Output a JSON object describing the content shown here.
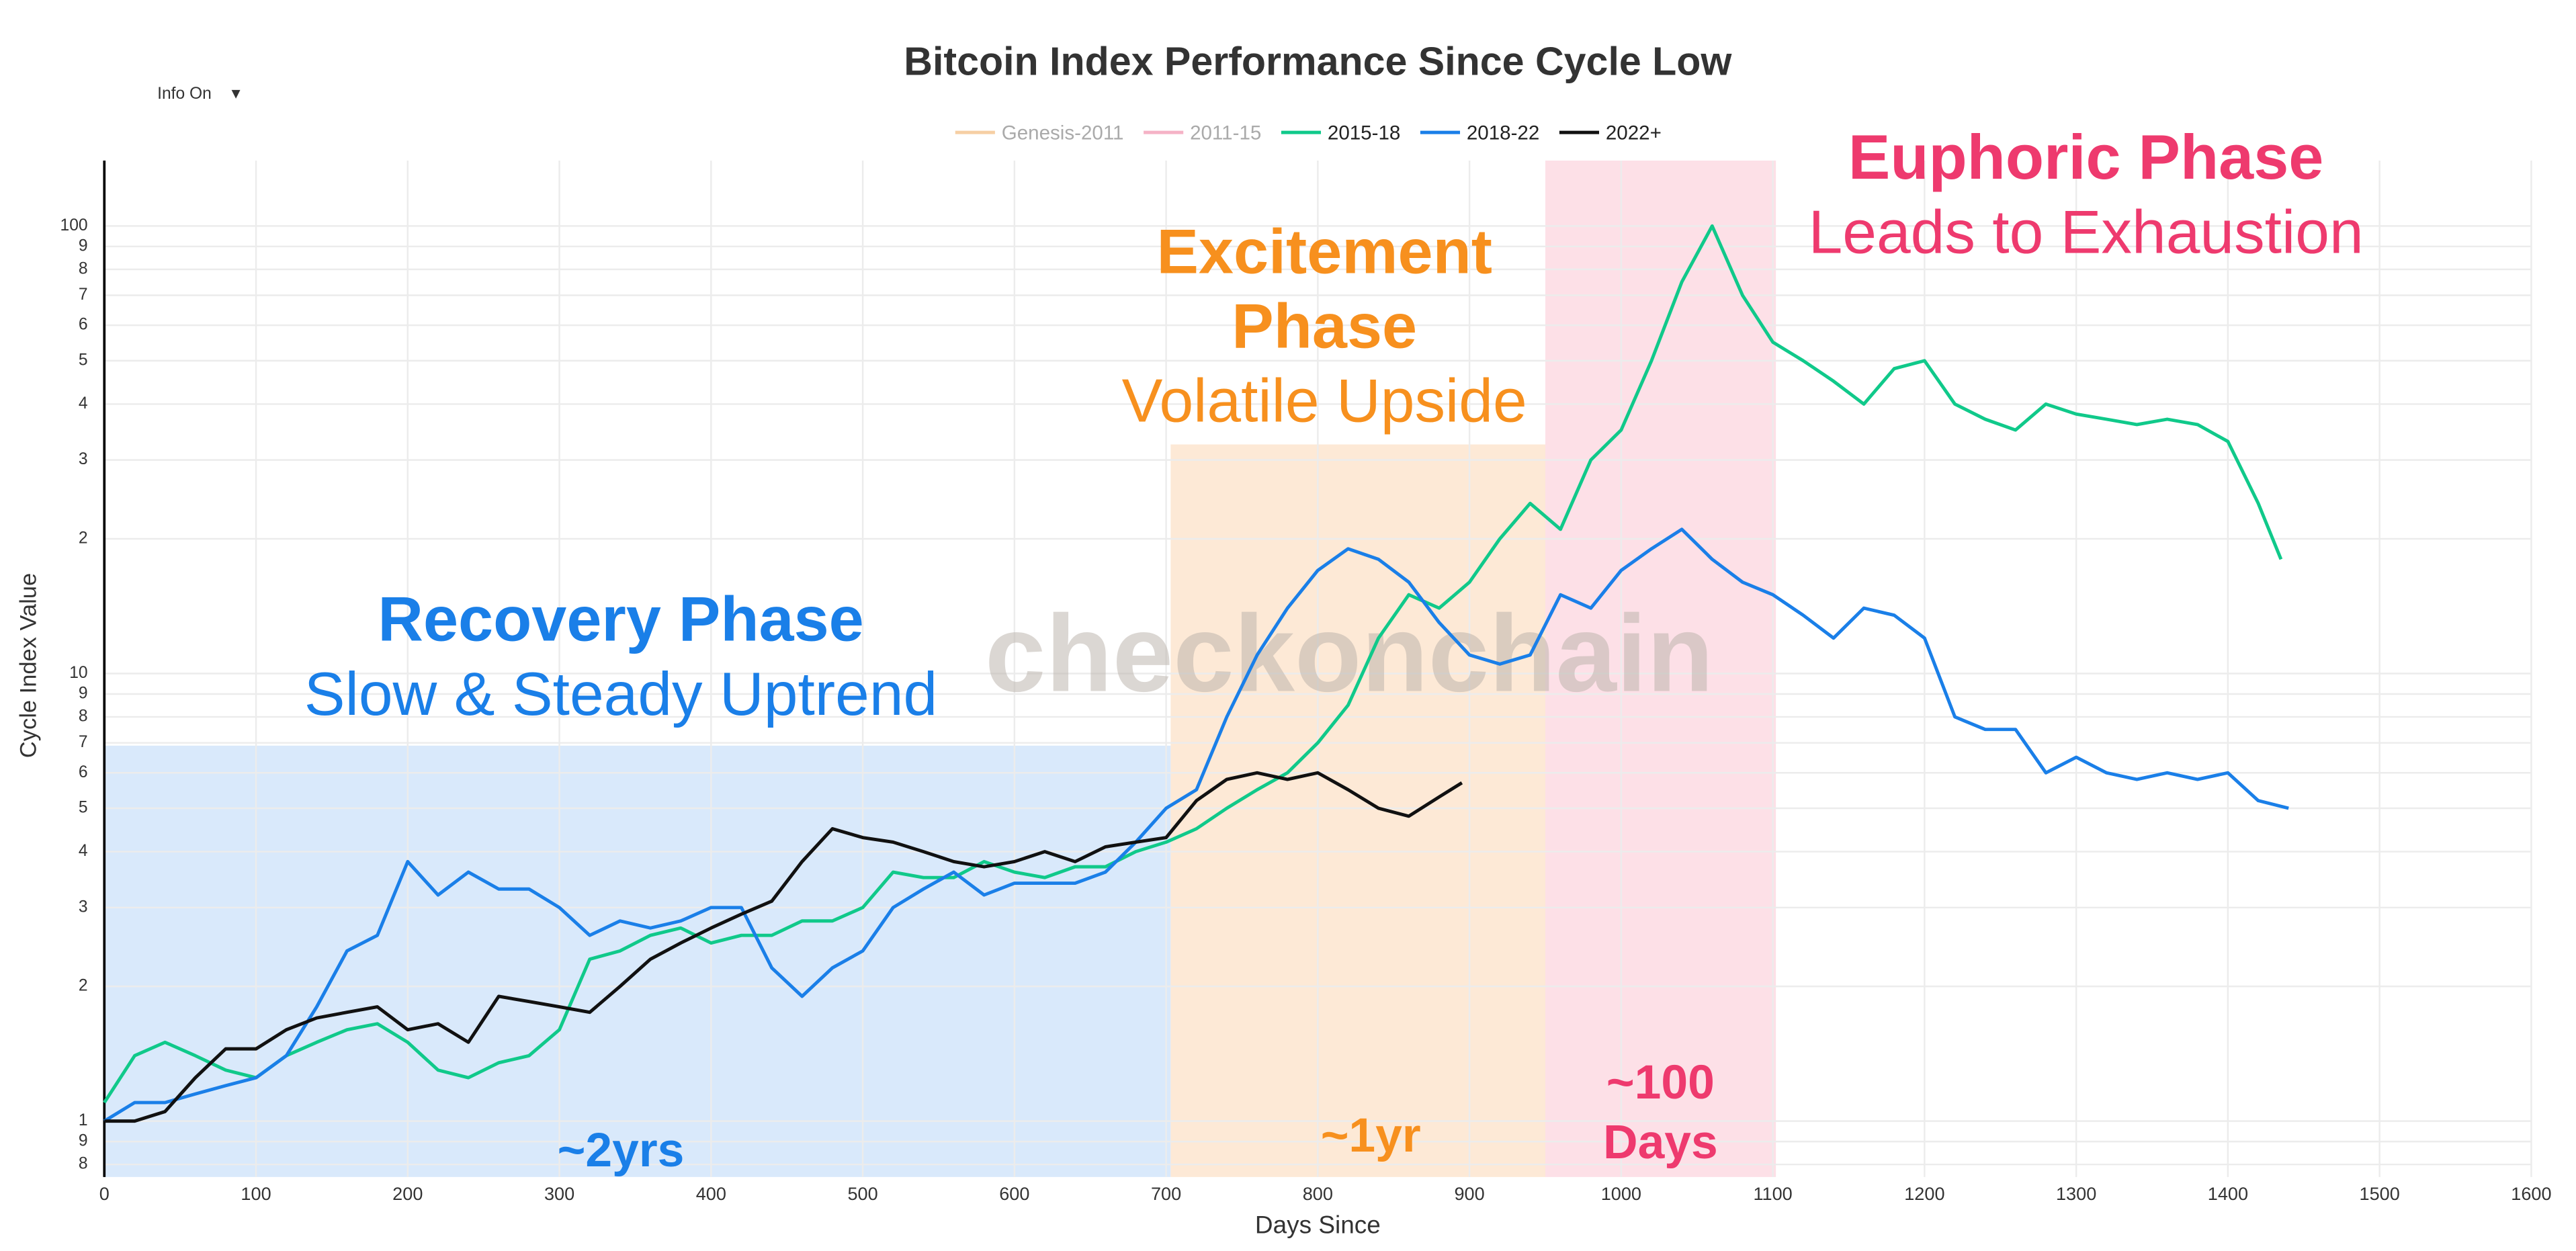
{
  "chart_data": {
    "type": "line",
    "title": "Bitcoin Index Performance Since Cycle Low",
    "menu": {
      "label": "Info On",
      "arrow": "▼"
    },
    "watermark": "checkonchain",
    "xlabel": "Days Since",
    "ylabel": "Cycle Index Value",
    "log_y": true,
    "grid": true,
    "legend": "top",
    "xlim": [
      0,
      1600
    ],
    "xticks": [
      0,
      100,
      200,
      300,
      400,
      500,
      600,
      700,
      800,
      900,
      1000,
      1100,
      1200,
      1300,
      1400,
      1500,
      1600
    ],
    "ylim": [
      0.75,
      140
    ],
    "yticks": [
      {
        "value": 0.8,
        "label": "8"
      },
      {
        "value": 0.9,
        "label": "9"
      },
      1,
      2,
      3,
      4,
      5,
      6,
      7,
      8,
      9,
      10,
      {
        "value": 20,
        "label": "2"
      },
      {
        "value": 30,
        "label": "3"
      },
      {
        "value": 40,
        "label": "4"
      },
      {
        "value": 50,
        "label": "5"
      },
      {
        "value": 60,
        "label": "6"
      },
      {
        "value": 70,
        "label": "7"
      },
      {
        "value": 80,
        "label": "8"
      },
      {
        "value": 90,
        "label": "9"
      },
      100
    ],
    "phases": [
      {
        "x": [
          0,
          703
        ],
        "top": 6.9,
        "color": "#1a7fe8",
        "fill": "#d9e9fb",
        "title": [
          "Recovery Phase"
        ],
        "subtitle": "Slow & Steady Uptrend",
        "duration": [
          "~2yrs"
        ]
      },
      {
        "x": [
          703,
          950
        ],
        "top": 32.5,
        "color": "#f7901e",
        "fill": "#fde9d6",
        "title": [
          "Excitement",
          "Phase"
        ],
        "subtitle": "Volatile Upside",
        "duration": [
          "~1yr"
        ]
      },
      {
        "x": [
          950,
          1102
        ],
        "top": 140,
        "color": "#ee3a6e",
        "fill": "#fde0e7",
        "title": [
          "Euphoric Phase"
        ],
        "subtitle": "Leads to Exhaustion",
        "duration": [
          "~100",
          "Days"
        ]
      }
    ],
    "series": [
      {
        "name": "Genesis-2011",
        "color": "#f6cfa4",
        "visible": false,
        "x": [],
        "values": []
      },
      {
        "name": "2011-15",
        "color": "#f5b3c6",
        "visible": false,
        "x": [],
        "values": []
      },
      {
        "name": "2015-18",
        "color": "#10c98a",
        "visible": true,
        "x": [
          0,
          20,
          40,
          60,
          80,
          100,
          120,
          140,
          160,
          180,
          200,
          220,
          240,
          260,
          280,
          300,
          320,
          340,
          360,
          380,
          400,
          420,
          440,
          460,
          480,
          500,
          520,
          540,
          560,
          580,
          600,
          620,
          640,
          660,
          680,
          700,
          720,
          740,
          760,
          780,
          800,
          820,
          840,
          860,
          880,
          900,
          920,
          940,
          960,
          980,
          1000,
          1020,
          1040,
          1060,
          1080,
          1100,
          1120,
          1140,
          1160,
          1180,
          1200,
          1220,
          1240,
          1260,
          1280,
          1300,
          1320,
          1340,
          1360,
          1380,
          1400,
          1420,
          1435
        ],
        "values": [
          1.1,
          1.4,
          1.5,
          1.4,
          1.3,
          1.25,
          1.4,
          1.5,
          1.6,
          1.65,
          1.5,
          1.3,
          1.25,
          1.35,
          1.4,
          1.6,
          2.3,
          2.4,
          2.6,
          2.7,
          2.5,
          2.6,
          2.6,
          2.8,
          2.8,
          3.0,
          3.6,
          3.5,
          3.5,
          3.8,
          3.6,
          3.5,
          3.7,
          3.7,
          4.0,
          4.2,
          4.5,
          5.0,
          5.5,
          6.0,
          7.0,
          8.5,
          12,
          15,
          14,
          16,
          20,
          24,
          21,
          30,
          35,
          50,
          75,
          100,
          70,
          55,
          50,
          45,
          40,
          48,
          50,
          40,
          37,
          35,
          40,
          38,
          37,
          36,
          37,
          36,
          33,
          24,
          18
        ]
      },
      {
        "name": "2018-22",
        "color": "#1a7fe8",
        "visible": true,
        "x": [
          0,
          20,
          40,
          60,
          80,
          100,
          120,
          140,
          160,
          180,
          200,
          220,
          240,
          260,
          280,
          300,
          320,
          340,
          360,
          380,
          400,
          420,
          440,
          460,
          480,
          500,
          520,
          540,
          560,
          580,
          600,
          620,
          640,
          660,
          680,
          700,
          720,
          740,
          760,
          780,
          800,
          820,
          840,
          860,
          880,
          900,
          920,
          940,
          960,
          980,
          1000,
          1020,
          1040,
          1060,
          1080,
          1100,
          1120,
          1140,
          1160,
          1180,
          1200,
          1220,
          1240,
          1260,
          1280,
          1300,
          1320,
          1340,
          1360,
          1380,
          1400,
          1420,
          1440
        ],
        "values": [
          1.0,
          1.1,
          1.1,
          1.15,
          1.2,
          1.25,
          1.4,
          1.8,
          2.4,
          2.6,
          3.8,
          3.2,
          3.6,
          3.3,
          3.3,
          3.0,
          2.6,
          2.8,
          2.7,
          2.8,
          3.0,
          3.0,
          2.2,
          1.9,
          2.2,
          2.4,
          3.0,
          3.3,
          3.6,
          3.2,
          3.4,
          3.4,
          3.4,
          3.6,
          4.2,
          5.0,
          5.5,
          8,
          11,
          14,
          17,
          19,
          18,
          16,
          13,
          11,
          10.5,
          11,
          15,
          14,
          17,
          19,
          21,
          18,
          16,
          15,
          13.5,
          12,
          14,
          13.5,
          12,
          8,
          7.5,
          7.5,
          6,
          6.5,
          6.0,
          5.8,
          6.0,
          5.8,
          6.0,
          5.2,
          5.0
        ]
      },
      {
        "name": "2022+",
        "color": "#111111",
        "visible": true,
        "x": [
          0,
          20,
          40,
          60,
          80,
          100,
          120,
          140,
          160,
          180,
          200,
          220,
          240,
          260,
          280,
          300,
          320,
          340,
          360,
          380,
          400,
          420,
          440,
          460,
          480,
          500,
          520,
          540,
          560,
          580,
          600,
          620,
          640,
          660,
          680,
          700,
          720,
          740,
          760,
          780,
          800,
          820,
          840,
          860,
          880,
          895
        ],
        "values": [
          1.0,
          1.0,
          1.05,
          1.25,
          1.45,
          1.45,
          1.6,
          1.7,
          1.75,
          1.8,
          1.6,
          1.65,
          1.5,
          1.9,
          1.85,
          1.8,
          1.75,
          2.0,
          2.3,
          2.5,
          2.7,
          2.9,
          3.1,
          3.8,
          4.5,
          4.3,
          4.2,
          4.0,
          3.8,
          3.7,
          3.8,
          4.0,
          3.8,
          4.1,
          4.2,
          4.3,
          5.2,
          5.8,
          6.0,
          5.8,
          6.0,
          5.5,
          5.0,
          4.8,
          5.3,
          5.7
        ]
      }
    ]
  }
}
